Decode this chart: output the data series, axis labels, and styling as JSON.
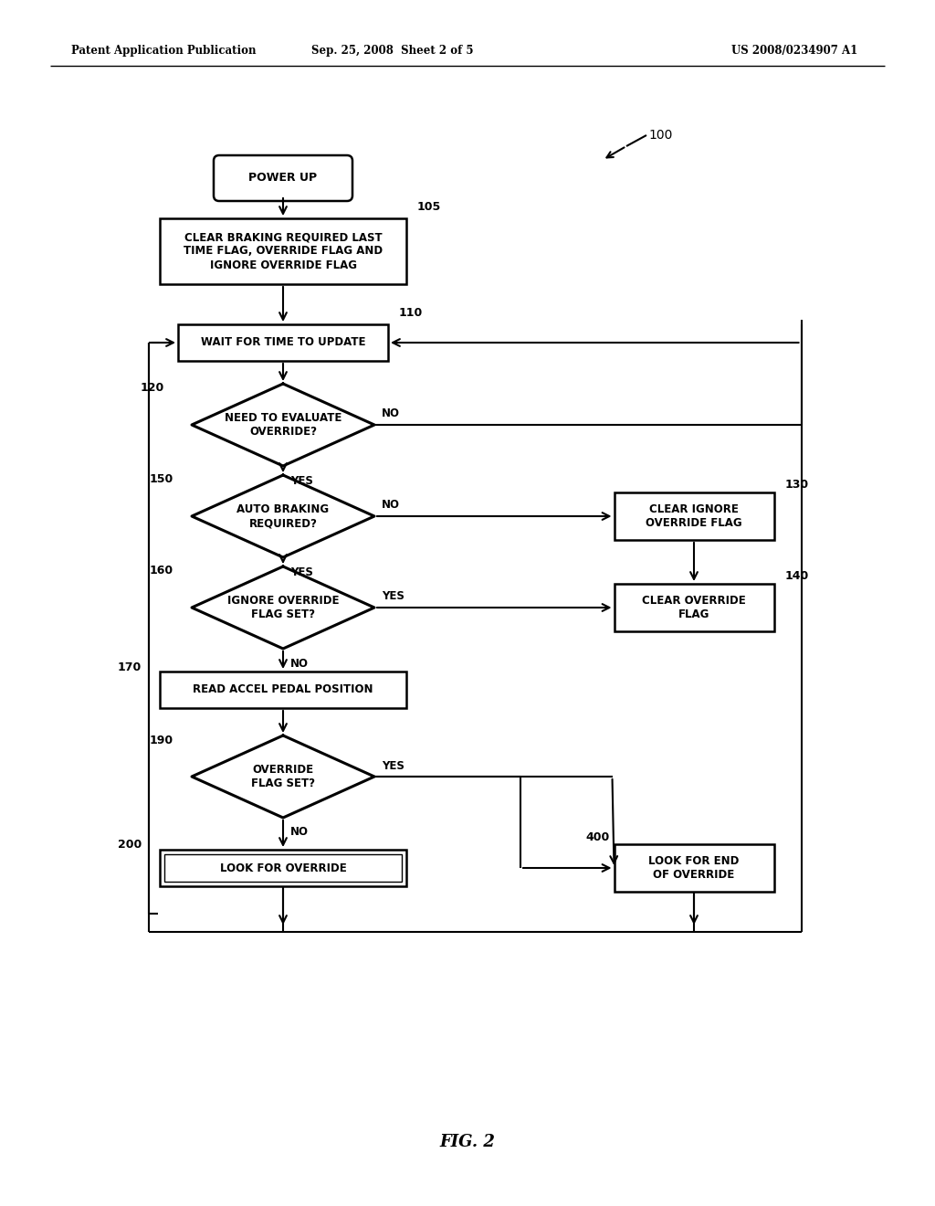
{
  "header_left": "Patent Application Publication",
  "header_mid": "Sep. 25, 2008  Sheet 2 of 5",
  "header_right": "US 2008/0234907 A1",
  "fig_label": "FIG. 2",
  "bg_color": "#ffffff"
}
